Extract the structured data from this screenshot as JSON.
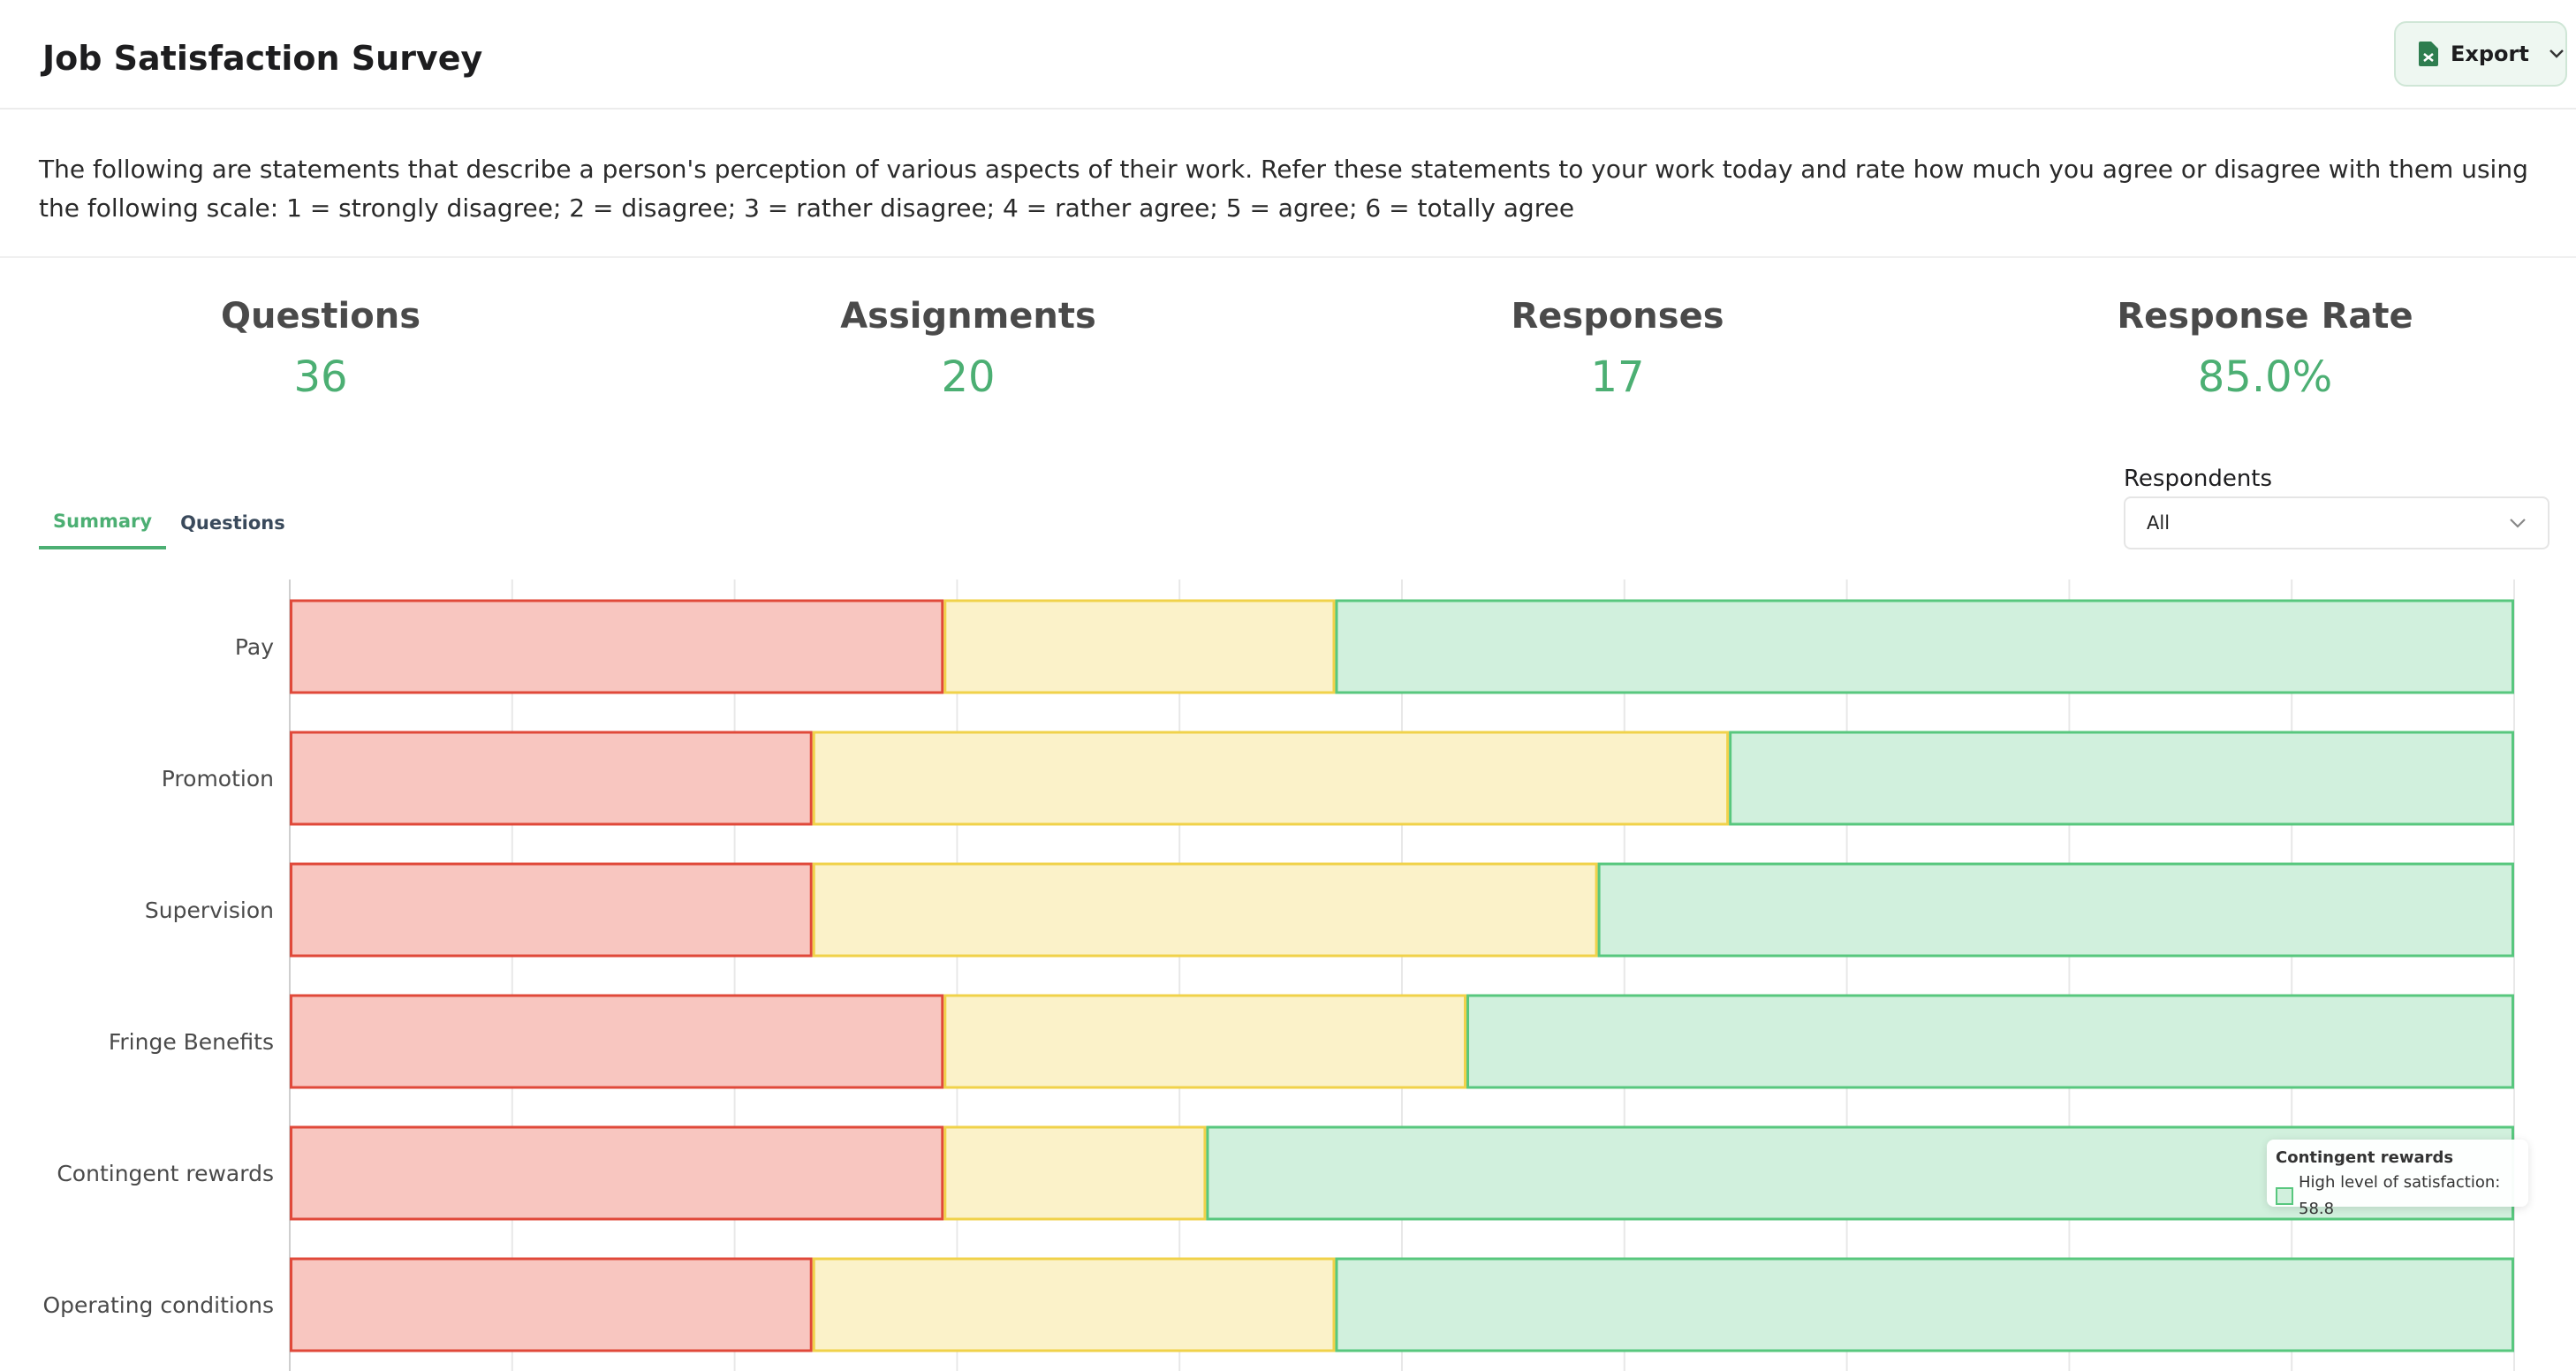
{
  "header": {
    "title": "Job Satisfaction Survey",
    "export_label": "Export"
  },
  "description": "The following are statements that describe a person's perception of various aspects of their work. Refer these statements to your work today and rate how much you agree or disagree with them using the following scale: 1 = strongly disagree; 2 = disagree; 3 = rather disagree; 4 = rather agree; 5 = agree; 6 = totally agree",
  "stats": [
    {
      "label": "Questions",
      "value": "36"
    },
    {
      "label": "Assignments",
      "value": "20"
    },
    {
      "label": "Responses",
      "value": "17"
    },
    {
      "label": "Response Rate",
      "value": "85.0%"
    }
  ],
  "tabs": [
    {
      "label": "Summary",
      "active": true
    },
    {
      "label": "Questions",
      "active": false
    }
  ],
  "respondents": {
    "label": "Respondents",
    "selected": "All"
  },
  "colors": {
    "accent": "#4caf73",
    "low_fill": "#f8c6c0",
    "low_stroke": "#e0493a",
    "mid_fill": "#fbf2c9",
    "mid_stroke": "#f0d24a",
    "high_fill": "#d1f0dd",
    "high_stroke": "#58c77e"
  },
  "chart_data": {
    "type": "bar",
    "orientation": "horizontal",
    "stacked": true,
    "categories": [
      "Pay",
      "Promotion",
      "Supervision",
      "Fringe Benefits",
      "Contingent rewards",
      "Operating conditions"
    ],
    "series": [
      {
        "key": "low",
        "values": [
          29.4,
          23.5,
          23.5,
          29.4,
          29.4,
          23.5
        ]
      },
      {
        "key": "mid",
        "values": [
          17.6,
          41.2,
          35.3,
          23.5,
          11.8,
          23.5
        ]
      },
      {
        "key": "high",
        "name": "High level of satisfaction",
        "values": [
          53.0,
          35.3,
          41.2,
          47.1,
          58.8,
          53.0
        ]
      }
    ],
    "xlim": [
      0,
      100
    ],
    "grid": true
  },
  "tooltip": {
    "title": "Contingent rewards",
    "text": "High level of satisfaction: 58.8"
  }
}
